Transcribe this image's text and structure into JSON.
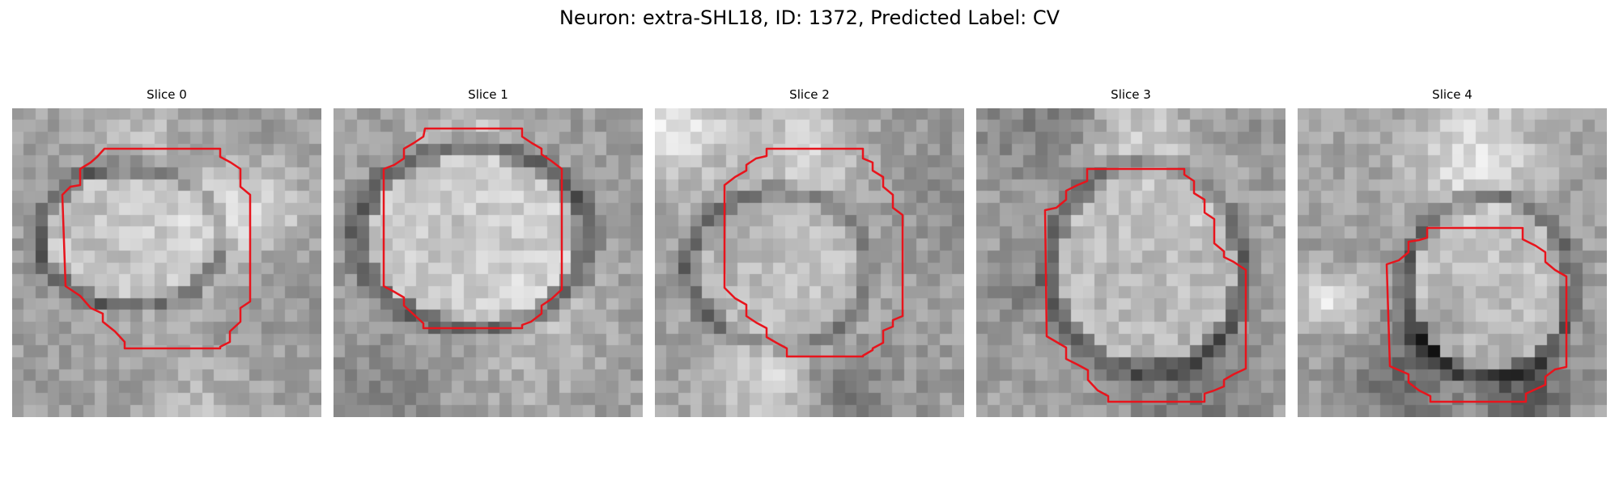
{
  "figure": {
    "title": "Neuron: extra-SHL18, ID: 1372, Predicted Label: CV",
    "contour_color": "#e8141c"
  },
  "slices": [
    {
      "title": "Slice 0"
    },
    {
      "title": "Slice 1"
    },
    {
      "title": "Slice 2"
    },
    {
      "title": "Slice 3"
    },
    {
      "title": "Slice 4"
    }
  ]
}
